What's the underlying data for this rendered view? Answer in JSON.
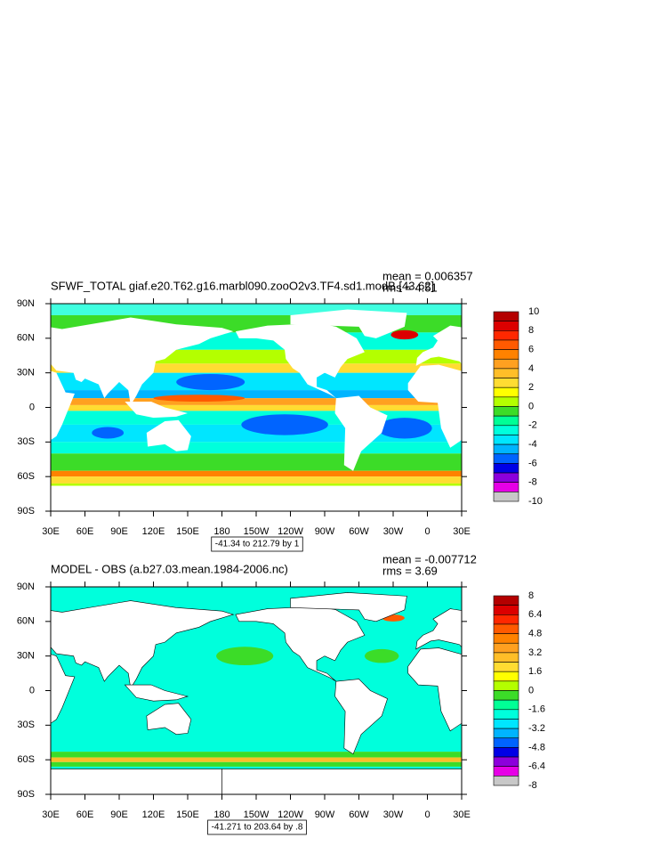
{
  "panels": [
    {
      "title": "SFWF_TOTAL giaf.e20.T62.g16.marbl090.zooO2v3.TF4.sd1.modB [43.62]",
      "mean": "mean = 0.006357",
      "rms": "rms = 4.51",
      "lat_labels": [
        "90N",
        "60N",
        "30N",
        "0",
        "30S",
        "60S",
        "90S"
      ],
      "lon_labels": [
        "30E",
        "60E",
        "90E",
        "120E",
        "150E",
        "180",
        "150W",
        "120W",
        "90W",
        "60W",
        "30W",
        "0",
        "30E"
      ],
      "range_note": "-41.34 to 212.79 by 1",
      "colorbar": {
        "levels": [
          10,
          8,
          6,
          4,
          2,
          0,
          -2,
          -4,
          -6,
          -8,
          -10
        ]
      }
    },
    {
      "title": "MODEL - OBS (a.b27.03.mean.1984-2006.nc)",
      "mean": "mean = -0.007712",
      "rms": "rms = 3.69",
      "lat_labels": [
        "90N",
        "60N",
        "30N",
        "0",
        "30S",
        "60S",
        "90S"
      ],
      "lon_labels": [
        "30E",
        "60E",
        "90E",
        "120E",
        "150E",
        "180",
        "150W",
        "120W",
        "90W",
        "60W",
        "30W",
        "0",
        "30E"
      ],
      "range_note": "-41.271 to 203.64 by .8",
      "colorbar": {
        "levels": [
          8,
          6.4,
          4.8,
          3.2,
          1.6,
          0,
          -1.6,
          -3.2,
          -4.8,
          -6.4,
          -8
        ]
      }
    }
  ],
  "palette": [
    "#b40000",
    "#dc0000",
    "#ff2800",
    "#ff5a00",
    "#ff8200",
    "#ffa020",
    "#ffbe28",
    "#ffdc32",
    "#ffff00",
    "#b4ff00",
    "#3cdc28",
    "#00ff96",
    "#00ffdc",
    "#00e6ff",
    "#00b4ff",
    "#0064ff",
    "#0000e6",
    "#8c00dc",
    "#e600e6",
    "#c8c8c8"
  ]
}
